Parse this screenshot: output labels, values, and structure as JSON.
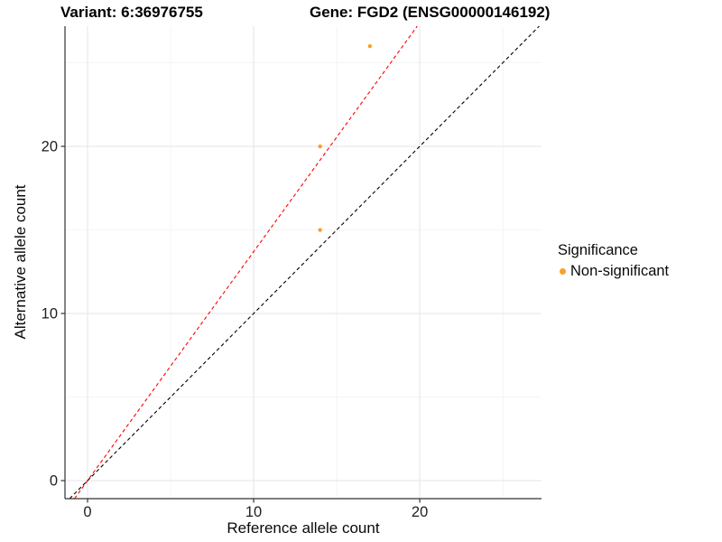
{
  "titles": {
    "variant": "Variant: 6:36976755",
    "gene": "Gene: FGD2 (ENSG00000146192)"
  },
  "legend": {
    "title": "Significance",
    "items": [
      {
        "label": "Non-significant",
        "color": "#F9A023"
      }
    ]
  },
  "chart_data": {
    "type": "scatter",
    "title": "Variant: 6:36976755 | Gene: FGD2 (ENSG00000146192)",
    "xlabel": "Reference allele count",
    "ylabel": "Alternative allele count",
    "xlim": [
      -1.36,
      27.33
    ],
    "ylim": [
      -1.08,
      27.19
    ],
    "x_ticks": [
      0,
      10,
      20
    ],
    "y_ticks": [
      0,
      10,
      20
    ],
    "x_minor_ticks": [
      5,
      15,
      25
    ],
    "y_minor_ticks": [
      5,
      15,
      25
    ],
    "grid": true,
    "legend_position": "right",
    "series": [
      {
        "name": "Non-significant",
        "color": "#F9A023",
        "marker_radius": 2.2,
        "points": [
          [
            14,
            15
          ],
          [
            14,
            20
          ],
          [
            17,
            26
          ]
        ]
      }
    ],
    "lines": [
      {
        "name": "fitted-ratio-line",
        "slope": 1.37,
        "intercept": 0,
        "color": "#FF0000",
        "style": "dashed"
      },
      {
        "name": "identity-line",
        "slope": 1,
        "intercept": 0,
        "color": "#000000",
        "style": "dashed"
      }
    ],
    "colors": {
      "major_grid": "#E7E7E7",
      "minor_grid": "#F2F2F2",
      "axis_line": "#333333",
      "tick_text": "#1F1F1F",
      "background": "#FFFFFF"
    }
  }
}
